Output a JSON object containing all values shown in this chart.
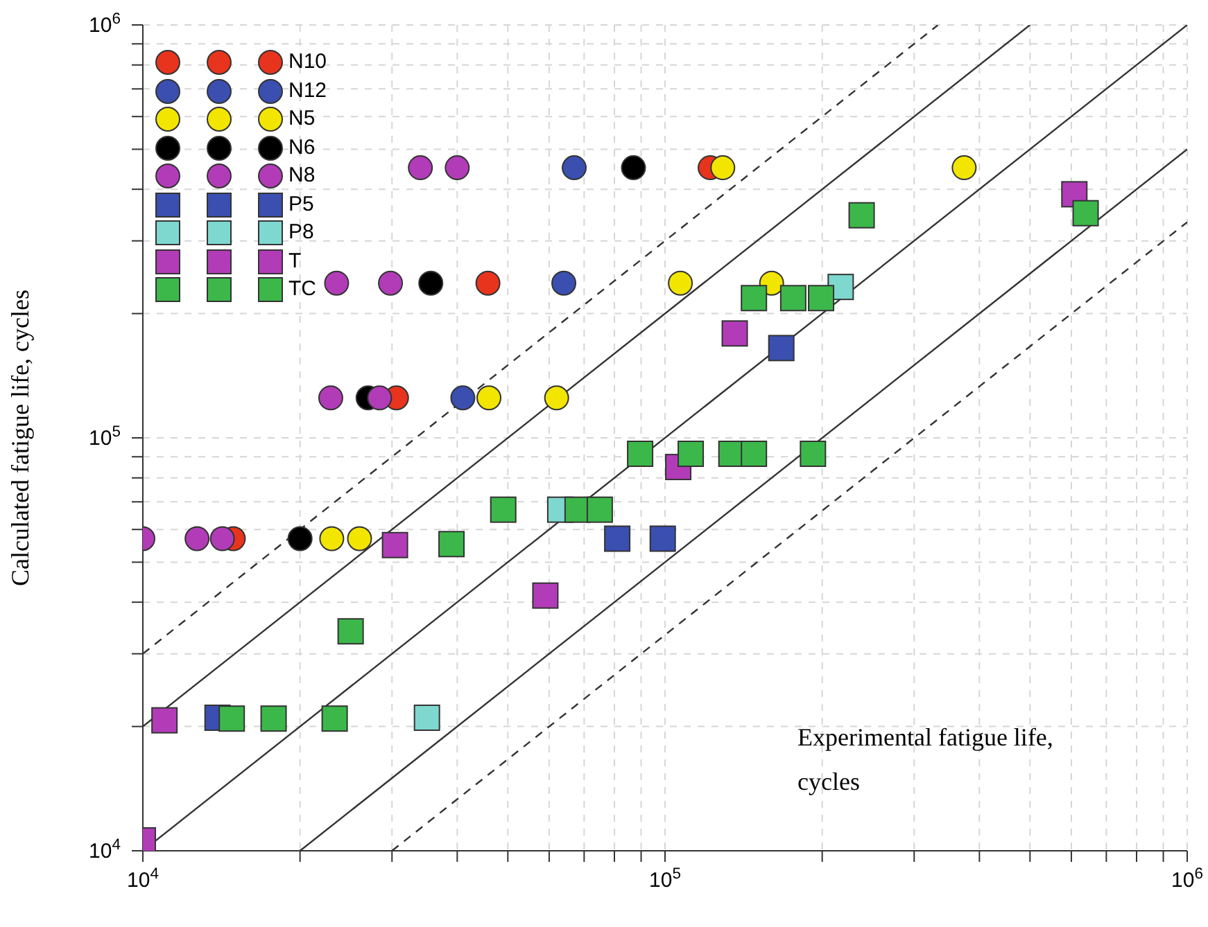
{
  "chart_data": {
    "type": "scatter",
    "xlabel": "Experimental fatigue life, cycles",
    "ylabel": "Calculated fatigue life, cycles",
    "log": "xy",
    "grid": true,
    "legend": "top left",
    "xlim": [
      10000,
      1000000
    ],
    "ylim": [
      10000,
      1000000
    ],
    "xticks": [
      {
        "value": 10000,
        "label": "10$^{4}$"
      },
      {
        "value": 20000,
        "label": null
      },
      {
        "value": 30000,
        "label": null
      },
      {
        "value": 40000,
        "label": null
      },
      {
        "value": 50000,
        "label": null
      },
      {
        "value": 60000,
        "label": null
      },
      {
        "value": 70000,
        "label": null
      },
      {
        "value": 80000,
        "label": null
      },
      {
        "value": 90000,
        "label": null
      },
      {
        "value": 100000,
        "label": "10$^{5}$"
      },
      {
        "value": 200000,
        "label": null
      },
      {
        "value": 300000,
        "label": null
      },
      {
        "value": 400000,
        "label": null
      },
      {
        "value": 500000,
        "label": null
      },
      {
        "value": 600000,
        "label": null
      },
      {
        "value": 700000,
        "label": null
      },
      {
        "value": 800000,
        "label": null
      },
      {
        "value": 900000,
        "label": null
      },
      {
        "value": 1000000,
        "label": "10$^{6}$"
      }
    ],
    "yticks": [
      {
        "value": 10000,
        "label": "10$^{4}$"
      },
      {
        "value": 20000,
        "label": null
      },
      {
        "value": 30000,
        "label": null
      },
      {
        "value": 40000,
        "label": null
      },
      {
        "value": 50000,
        "label": null
      },
      {
        "value": 60000,
        "label": null
      },
      {
        "value": 70000,
        "label": null
      },
      {
        "value": 80000,
        "label": null
      },
      {
        "value": 90000,
        "label": null
      },
      {
        "value": 100000,
        "label": "10$^{5}$"
      },
      {
        "value": 200000,
        "label": null
      },
      {
        "value": 300000,
        "label": null
      },
      {
        "value": 400000,
        "label": null
      },
      {
        "value": 500000,
        "label": null
      },
      {
        "value": 600000,
        "label": null
      },
      {
        "value": 700000,
        "label": null
      },
      {
        "value": 800000,
        "label": null
      },
      {
        "value": 900000,
        "label": null
      },
      {
        "value": 1000000,
        "label": "10$^{6}$"
      }
    ],
    "series": [
      {
        "type": "line",
        "color": "#333333",
        "line_style": "dashed",
        "marker": "none",
        "x": [
          10000,
          333000
        ],
        "values": [
          30000,
          999000
        ]
      },
      {
        "type": "line",
        "color": "#333333",
        "line_style": "solid",
        "marker": "none",
        "x": [
          10000,
          500000
        ],
        "values": [
          20000,
          1000000
        ]
      },
      {
        "type": "line",
        "color": "#333333",
        "line_style": "solid",
        "marker": "none",
        "x": [
          10000,
          1000000
        ],
        "values": [
          10000,
          1000000
        ]
      },
      {
        "type": "line",
        "color": "#333333",
        "line_style": "solid",
        "marker": "none",
        "x": [
          20000,
          1000000
        ],
        "values": [
          10000,
          500000
        ]
      },
      {
        "type": "line",
        "color": "#333333",
        "line_style": "dashed",
        "marker": "none",
        "x": [
          30000,
          1000000
        ],
        "values": [
          10000,
          333000
        ]
      },
      {
        "name": "N10",
        "color": "#e8341c",
        "marker": "circle",
        "x": [
          14900,
          30600,
          45800,
          122000
        ],
        "values": [
          57000,
          125000,
          237000,
          451000
        ]
      },
      {
        "name": "N12",
        "color": "#3a4fb0",
        "marker": "circle",
        "x": [
          67000,
          64000,
          41000
        ],
        "values": [
          451000,
          237000,
          125000
        ]
      },
      {
        "name": "N5",
        "color": "#f2e600",
        "marker": "circle",
        "x": [
          129000,
          374000,
          107000,
          160000,
          46000,
          62000,
          23000,
          26000
        ],
        "values": [
          451000,
          451000,
          237000,
          237000,
          125000,
          125000,
          57000,
          57000
        ]
      },
      {
        "name": "N6",
        "color": "#000000",
        "marker": "circle",
        "x": [
          87000,
          35600,
          27000,
          20000
        ],
        "values": [
          451000,
          237000,
          125000,
          57000
        ]
      },
      {
        "name": "N8",
        "color": "#b23cb8",
        "marker": "circle",
        "x": [
          34000,
          40000,
          23500,
          29800,
          22900,
          28400,
          10000,
          12700,
          14200
        ],
        "values": [
          451000,
          451000,
          237000,
          237000,
          125000,
          125000,
          57000,
          57000,
          57000
        ]
      },
      {
        "name": "P5",
        "color": "#3a4fb0",
        "marker": "square",
        "x": [
          167000,
          81000,
          99000,
          13900
        ],
        "values": [
          165000,
          57000,
          57000,
          21000
        ]
      },
      {
        "name": "P8",
        "color": "#7fd8cf",
        "marker": "square",
        "x": [
          217000,
          63000,
          35000
        ],
        "values": [
          232000,
          67000,
          21000
        ]
      },
      {
        "name": "T",
        "color": "#b23cb8",
        "marker": "square",
        "x": [
          608000,
          136000,
          106000,
          30400,
          59000,
          11000,
          10000
        ],
        "values": [
          389000,
          179000,
          85000,
          55000,
          41500,
          20700,
          10600
        ]
      },
      {
        "name": "TC",
        "color": "#3cb84a",
        "marker": "square",
        "x": [
          238000,
          639000,
          148000,
          176000,
          199000,
          89600,
          112000,
          134000,
          148000,
          192000,
          49000,
          68000,
          75000,
          39000,
          25000,
          14800,
          17800,
          23300
        ],
        "values": [
          346000,
          350000,
          218000,
          218000,
          218000,
          91500,
          91500,
          91500,
          91500,
          91500,
          67000,
          67000,
          67000,
          55300,
          34000,
          20900,
          20900,
          20900
        ]
      }
    ]
  }
}
